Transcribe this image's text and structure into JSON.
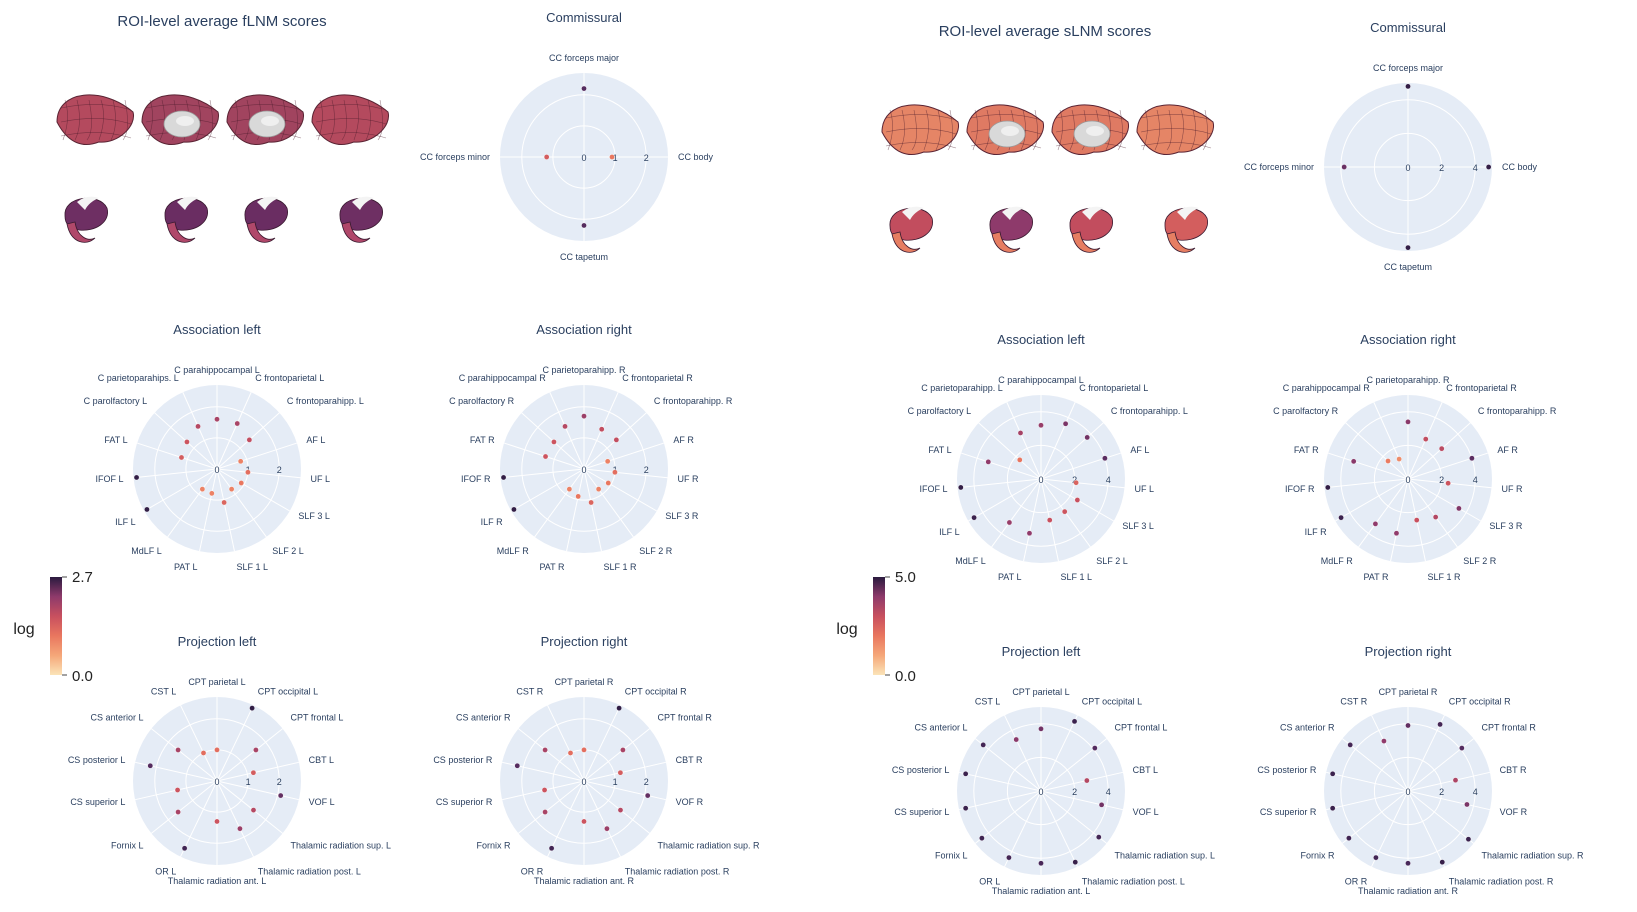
{
  "colors": {
    "polar_bg": "#e5ecf6",
    "grid": "#ffffff",
    "colorscale": [
      "#fbe4b8",
      "#f5a779",
      "#e9775f",
      "#c8505f",
      "#8e3a6b",
      "#4e2a5e",
      "#2a1a3f"
    ]
  },
  "chart_data": [
    {
      "type": "brain-surface",
      "title": "ROI-level average fLNM scores",
      "colorbar": {
        "label": "log",
        "min_label": "0.0",
        "max_label": "2.7",
        "min": 0,
        "max": 2.7
      },
      "views": [
        "cortex-lateral-left",
        "cortex-medial-left",
        "cortex-medial-right",
        "cortex-lateral-right",
        "subcortex-1",
        "subcortex-2",
        "subcortex-3",
        "subcortex-4"
      ]
    },
    {
      "type": "polar-scatter",
      "title": "Commissural",
      "group": "fLNM",
      "radial_ticks": [
        "0",
        "1",
        "2"
      ],
      "radial_max": 2.7,
      "theta_labels": [
        "CC forceps major",
        "CC body",
        "CC tapetum",
        "CC forceps minor"
      ],
      "values": [
        2.2,
        0.9,
        2.2,
        1.2
      ]
    },
    {
      "type": "polar-scatter",
      "title": "Association left",
      "group": "fLNM",
      "radial_ticks": [
        "0",
        "1",
        "2"
      ],
      "radial_max": 2.7,
      "theta_labels": [
        "C parahippocampal L",
        "C frontoparietal L",
        "C frontoparahipp. L",
        "AF L",
        "UF L",
        "SLF 3 L",
        "SLF 2 L",
        "SLF 1 L",
        "PAT L",
        "MdLF L",
        "ILF L",
        "IFOF L",
        "FAT L",
        "C parolfactory L",
        "C parietoparahips. L"
      ],
      "values": [
        1.6,
        1.6,
        1.4,
        0.8,
        1.0,
        0.9,
        0.8,
        1.1,
        0.8,
        0.8,
        2.6,
        2.6,
        1.2,
        1.3,
        1.5
      ]
    },
    {
      "type": "polar-scatter",
      "title": "Association right",
      "group": "fLNM",
      "radial_ticks": [
        "0",
        "1",
        "2"
      ],
      "radial_max": 2.7,
      "theta_labels": [
        "C parietoparahipp. R",
        "C frontoparietal R",
        "C frontoparahipp. R",
        "AF R",
        "UF R",
        "SLF 3 R",
        "SLF 2 R",
        "SLF 1 R",
        "PAT R",
        "MdLF R",
        "ILF R",
        "IFOF R",
        "FAT R",
        "C parolfactory R",
        "C parahippocampal R"
      ],
      "values": [
        1.7,
        1.4,
        1.4,
        0.8,
        1.0,
        0.9,
        0.8,
        1.1,
        0.9,
        0.8,
        2.6,
        2.6,
        1.3,
        1.3,
        1.5
      ]
    },
    {
      "type": "polar-scatter",
      "title": "Projection left",
      "group": "fLNM",
      "radial_ticks": [
        "0",
        "1",
        "2"
      ],
      "radial_max": 2.7,
      "theta_labels": [
        "CPT parietal L",
        "CPT occipital L",
        "CPT frontal L",
        "CBT L",
        "VOF L",
        "Thalamic radiation sup. L",
        "Thalamic radiation post. L",
        "Thalamic radiation ant. L",
        "OR L",
        "Fornix L",
        "CS superior L",
        "CS posterior L",
        "CS anterior L",
        "CST L"
      ],
      "values": [
        1.0,
        2.6,
        1.6,
        1.2,
        2.1,
        1.5,
        1.7,
        1.3,
        2.4,
        1.6,
        1.3,
        2.2,
        1.6,
        1.0
      ]
    },
    {
      "type": "polar-scatter",
      "title": "Projection right",
      "group": "fLNM",
      "radial_ticks": [
        "0",
        "1",
        "2"
      ],
      "radial_max": 2.7,
      "theta_labels": [
        "CPT parietal R",
        "CPT occipital R",
        "CPT frontal R",
        "CBT R",
        "VOF R",
        "Thalamic radiation sup. R",
        "Thalamic radiation post. R",
        "Thalamic radiation ant. R",
        "OR R",
        "Fornix R",
        "CS superior R",
        "CS posterior R",
        "CS anterior R",
        "CST R"
      ],
      "values": [
        1.0,
        2.6,
        1.6,
        1.2,
        2.1,
        1.5,
        1.7,
        1.3,
        2.4,
        1.6,
        1.3,
        2.2,
        1.6,
        1.0
      ]
    },
    {
      "type": "brain-surface",
      "title": "ROI-level average sLNM scores",
      "colorbar": {
        "label": "log",
        "min_label": "0.0",
        "max_label": "5.0",
        "min": 0,
        "max": 5.0
      },
      "views": [
        "cortex-lateral-left",
        "cortex-medial-left",
        "cortex-medial-right",
        "cortex-lateral-right",
        "subcortex-1",
        "subcortex-2",
        "subcortex-3",
        "subcortex-4"
      ]
    },
    {
      "type": "polar-scatter",
      "title": "Commissural",
      "group": "sLNM",
      "radial_ticks": [
        "0",
        "2",
        "4"
      ],
      "radial_max": 5.0,
      "theta_labels": [
        "CC forceps major",
        "CC body",
        "CC tapetum",
        "CC forceps minor"
      ],
      "values": [
        4.8,
        4.8,
        4.8,
        3.8
      ]
    },
    {
      "type": "polar-scatter",
      "title": "Association left",
      "group": "sLNM",
      "radial_ticks": [
        "0",
        "2",
        "4"
      ],
      "radial_max": 5.0,
      "theta_labels": [
        "C parahippocampal L",
        "C frontoparietal L",
        "C frontoparahipp. L",
        "AF L",
        "UF L",
        "SLF 3 L",
        "SLF 2 L",
        "SLF 1 L",
        "PAT L",
        "MdLF L",
        "ILF L",
        "IFOF L",
        "FAT L",
        "C parolfactory L",
        "C parietoparahipp. L"
      ],
      "values": [
        3.2,
        3.6,
        3.7,
        4.0,
        2.1,
        2.5,
        2.4,
        2.5,
        3.3,
        3.2,
        4.6,
        4.8,
        3.3,
        1.7,
        3.0
      ]
    },
    {
      "type": "polar-scatter",
      "title": "Association right",
      "group": "sLNM",
      "radial_ticks": [
        "0",
        "2",
        "4"
      ],
      "radial_max": 5.0,
      "theta_labels": [
        "C parietoparahipp. R",
        "C frontoparietal R",
        "C frontoparahipp. R",
        "AF R",
        "UF R",
        "SLF 3 R",
        "SLF 2 R",
        "SLF 1 R",
        "PAT R",
        "MdLF R",
        "ILF R",
        "IFOF R",
        "FAT R",
        "C parolfactory R",
        "C parahippocampal R"
      ],
      "values": [
        3.4,
        2.6,
        2.7,
        4.0,
        2.4,
        3.5,
        2.8,
        2.5,
        3.3,
        3.3,
        4.6,
        4.8,
        3.4,
        1.6,
        1.3
      ]
    },
    {
      "type": "polar-scatter",
      "title": "Projection left",
      "group": "sLNM",
      "radial_ticks": [
        "0",
        "2",
        "4"
      ],
      "radial_max": 5.0,
      "theta_labels": [
        "CPT parietal L",
        "CPT occipital L",
        "CPT frontal L",
        "CBT L",
        "VOF L",
        "Thalamic radiation sup. L",
        "Thalamic radiation post. L",
        "Thalamic radiation ant. L",
        "OR L",
        "Fornix L",
        "CS superior L",
        "CS posterior L",
        "CS anterior L",
        "CST L"
      ],
      "values": [
        3.7,
        4.6,
        4.1,
        2.8,
        3.7,
        4.4,
        4.7,
        4.3,
        4.4,
        4.5,
        4.6,
        4.6,
        4.4,
        3.4
      ]
    },
    {
      "type": "polar-scatter",
      "title": "Projection right",
      "group": "sLNM",
      "radial_ticks": [
        "0",
        "2",
        "4"
      ],
      "radial_max": 5.0,
      "theta_labels": [
        "CPT parietal R",
        "CPT occipital R",
        "CPT frontal R",
        "CBT R",
        "VOF R",
        "Thalamic radiation sup. R",
        "Thalamic radiation post. R",
        "Thalamic radiation ant. R",
        "OR R",
        "Fornix R",
        "CS superior R",
        "CS posterior R",
        "CS anterior R",
        "CST R"
      ],
      "values": [
        3.9,
        4.4,
        4.1,
        2.9,
        3.6,
        4.6,
        4.7,
        4.3,
        4.4,
        4.5,
        4.6,
        4.6,
        4.4,
        3.3
      ]
    }
  ]
}
